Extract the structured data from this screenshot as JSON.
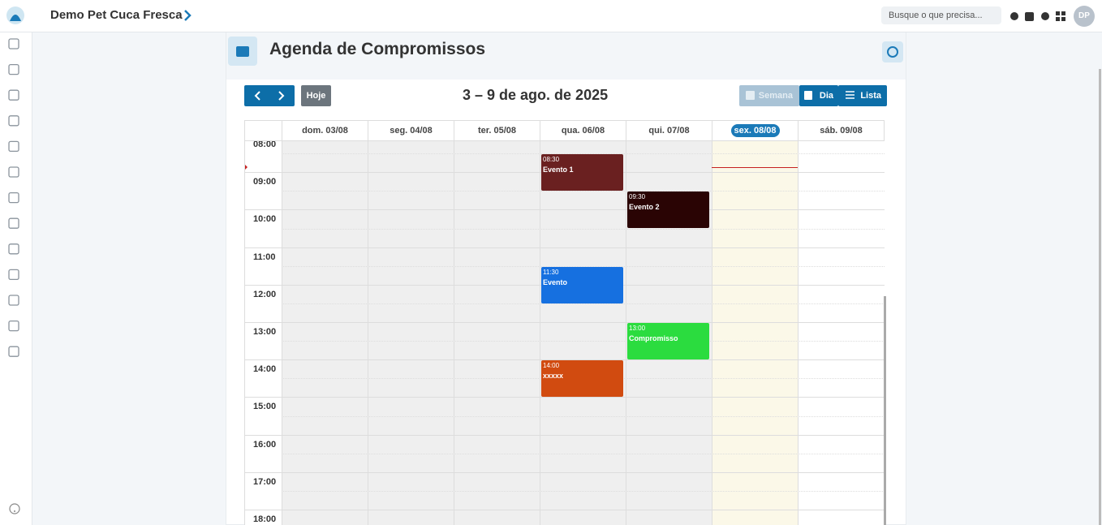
{
  "header": {
    "company": "Demo Pet Cuca Fresca",
    "search": "Busque o que precisa...",
    "avatar": "DP"
  },
  "page": {
    "title": "Agenda de Compromissos"
  },
  "toolbar": {
    "today": "Hoje",
    "range": "3 – 9 de ago. de 2025",
    "views": [
      "Semana",
      "Dia",
      "Lista"
    ]
  },
  "calendar": {
    "hours": [
      "08:00",
      "09:00",
      "10:00",
      "11:00",
      "12:00",
      "13:00",
      "14:00",
      "15:00",
      "16:00",
      "17:00",
      "18:00"
    ],
    "days": [
      {
        "label": "dom. 03/08",
        "events": []
      },
      {
        "label": "seg. 04/08",
        "events": []
      },
      {
        "label": "ter. 05/08",
        "events": []
      },
      {
        "label": "qua. 06/08",
        "events": [
          {
            "time": "08:30",
            "title": "Evento 1",
            "color": "#6a2020"
          },
          {
            "time": "11:30",
            "title": "Evento",
            "color": "#1670e0"
          },
          {
            "time": "14:00",
            "title": "xxxxx",
            "color": "#d14b10"
          }
        ]
      },
      {
        "label": "qui. 07/08",
        "events": [
          {
            "time": "09:30",
            "title": "Evento 2",
            "color": "#2a0404"
          },
          {
            "time": "13:00",
            "title": "Compromisso",
            "color": "#2bdc3f"
          }
        ]
      },
      {
        "label": "sex. 08/08",
        "today": true,
        "events": []
      },
      {
        "label": "sáb. 09/08",
        "events": []
      }
    ]
  }
}
